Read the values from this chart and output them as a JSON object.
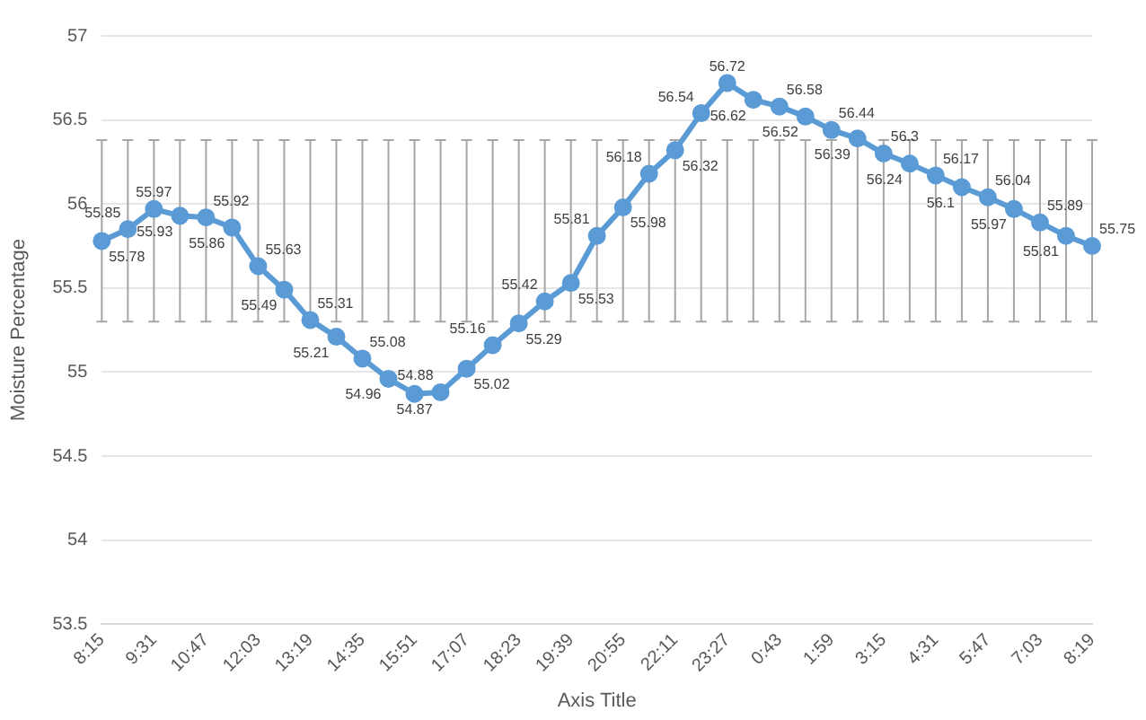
{
  "chart_data": {
    "type": "line",
    "xlabel": "Axis Title",
    "ylabel": "Moisture Percentage",
    "categories": [
      "8:15",
      null,
      "9:31",
      null,
      "10:47",
      null,
      "12:03",
      null,
      "13:19",
      null,
      "14:35",
      null,
      "15:51",
      null,
      "17:07",
      null,
      "18:23",
      null,
      "19:39",
      null,
      "20:55",
      null,
      "22:11",
      null,
      "23:27",
      null,
      "0:43",
      null,
      "1:59",
      null,
      "3:15",
      null,
      "4:31",
      null,
      "5:47",
      null,
      "7:03",
      null,
      "8:19"
    ],
    "series": [
      {
        "color": "#5b9bd5",
        "values": [
          55.78,
          55.85,
          55.97,
          55.93,
          55.92,
          55.86,
          55.63,
          55.49,
          55.31,
          55.21,
          55.08,
          54.96,
          54.87,
          54.88,
          55.02,
          55.16,
          55.29,
          55.42,
          55.53,
          55.81,
          55.98,
          56.18,
          56.32,
          56.54,
          56.72,
          56.62,
          56.58,
          56.52,
          56.44,
          56.39,
          56.3,
          56.24,
          56.17,
          56.1,
          56.04,
          55.97,
          55.89,
          55.81,
          55.75
        ],
        "errors": [
          [
            55.3,
            56.38
          ],
          [
            55.3,
            56.38
          ],
          [
            55.3,
            56.38
          ],
          [
            55.3,
            56.38
          ],
          [
            55.3,
            56.38
          ],
          [
            55.3,
            56.38
          ],
          [
            55.3,
            56.38
          ],
          [
            55.3,
            56.38
          ],
          [
            55.3,
            56.38
          ],
          [
            55.3,
            56.38
          ],
          [
            55.3,
            56.38
          ],
          [
            55.3,
            56.38
          ],
          [
            55.3,
            56.38
          ],
          [
            55.3,
            56.38
          ],
          [
            55.3,
            56.38
          ],
          [
            55.3,
            56.38
          ],
          [
            55.3,
            56.38
          ],
          [
            55.3,
            56.38
          ],
          [
            55.3,
            56.38
          ],
          [
            55.3,
            56.38
          ],
          [
            55.3,
            56.38
          ],
          [
            55.3,
            56.38
          ],
          [
            55.3,
            56.38
          ],
          [
            55.3,
            56.38
          ],
          [
            55.3,
            56.38
          ],
          [
            55.3,
            56.38
          ],
          [
            55.3,
            56.38
          ],
          [
            55.3,
            56.38
          ],
          [
            55.3,
            56.38
          ],
          [
            55.3,
            56.38
          ],
          [
            55.3,
            56.38
          ],
          [
            55.3,
            56.38
          ],
          [
            55.3,
            56.38
          ],
          [
            55.3,
            56.38
          ],
          [
            55.3,
            56.38
          ],
          [
            55.3,
            56.38
          ],
          [
            55.3,
            56.38
          ],
          [
            55.3,
            56.38
          ],
          [
            55.3,
            56.38
          ]
        ]
      }
    ],
    "ylim": [
      53.5,
      57
    ],
    "yticks": [
      53.5,
      54,
      54.5,
      55,
      55.5,
      56,
      56.5,
      57
    ],
    "grid": "y",
    "marker": "circle",
    "line_style": "solid",
    "data_labels": true,
    "legend": false
  }
}
